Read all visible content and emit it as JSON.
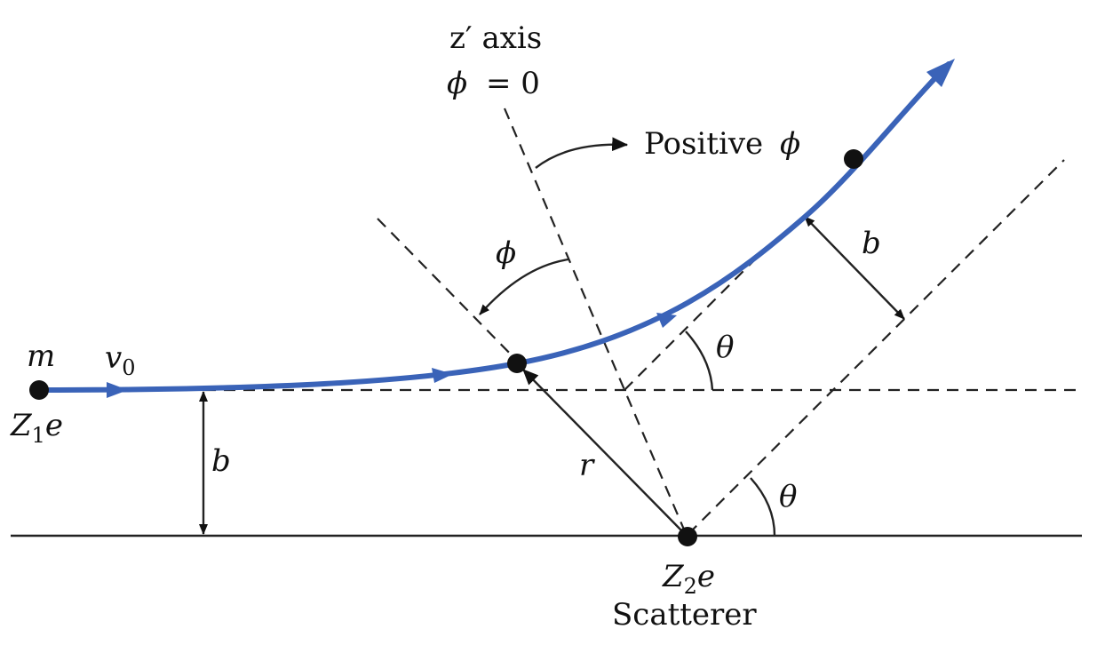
{
  "colors": {
    "trajectory": "#3a63b8",
    "lines": "#222222",
    "background": "#ffffff"
  },
  "labels": {
    "axis_name": "z′ axis",
    "phi_symbol": "ϕ",
    "axis_condition": "= 0",
    "positive_phi": "Positive",
    "phi_angle": "ϕ",
    "mass": "m",
    "velocity_v": "v",
    "velocity_sub": "0",
    "projectile_Z": "Z",
    "projectile_sub": "1",
    "projectile_e": "e",
    "impact_b_left": "b",
    "impact_b_right": "b",
    "theta_upper": "θ",
    "theta_lower": "θ",
    "radius": "r",
    "scatterer_Z": "Z",
    "scatterer_sub": "2",
    "scatterer_e": "e",
    "scatterer_name": "Scatterer"
  }
}
